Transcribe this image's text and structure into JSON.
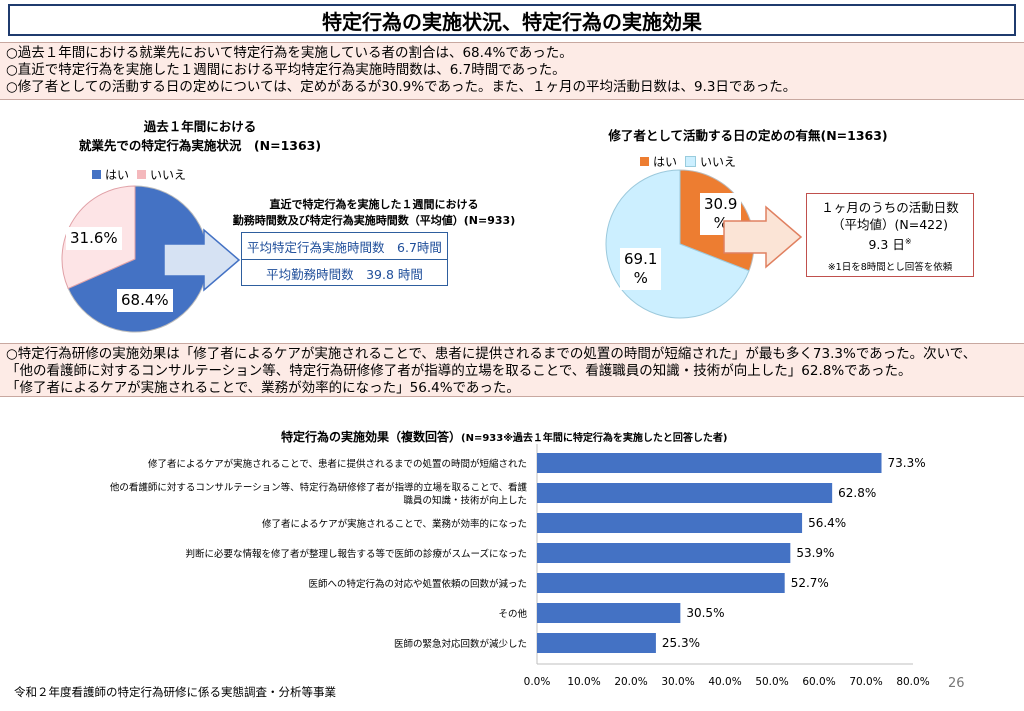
{
  "title": "特定行為の実施状況、特定行為の実施効果",
  "summary_top": [
    "○過去１年間における就業先において特定行為を実施している者の割合は、68.4%であった。",
    "○直近で特定行為を実施した１週間における平均特定行為実施時間数は、6.7時間であった。",
    "○修了者としての活動する日の定めについては、定めがあるが30.9%であった。また、１ヶ月の平均活動日数は、9.3日であった。"
  ],
  "pie1": {
    "title_line1": "過去１年間における",
    "title_line2": "就業先での特定行為実施状況　(N=1363)",
    "legend_yes": "はい",
    "legend_no": "いいえ",
    "label_yes": "68.4%",
    "label_no": "31.6%",
    "color_yes": "#4472c4",
    "color_no": "#f8d7da"
  },
  "hours": {
    "title_line1": "直近で特定行為を実施した１週間における",
    "title_line2": "勤務時間数及び特定行為実施時間数（平均値）(N=933)",
    "row1": "平均特定行為実施時間数　6.7時間",
    "row2": "平均勤務時間数　39.8 時間"
  },
  "pie2": {
    "title": "修了者として活動する日の定めの有無(N=1363)",
    "legend_yes": "はい",
    "legend_no": "いいえ",
    "label_yes_1": "30.9",
    "label_yes_2": "%",
    "label_no_1": "69.1",
    "label_no_2": "%",
    "color_yes": "#ed7d31",
    "color_no": "#ccefff"
  },
  "days": {
    "line1": "１ヶ月のうちの活動日数",
    "line2": "（平均値）(N=422)",
    "line3": "9.3 日",
    "mark": "※",
    "note": "※1日を8時間とし回答を依頼"
  },
  "summary_mid": [
    "○特定行為研修の実施効果は「修了者によるケアが実施されることで、患者に提供されるまでの処置の時間が短縮された」が最も多く73.3%であった。次いで、",
    "「他の看護師に対するコンサルテーション等、特定行為研修修了者が指導的立場を取ることで、看護職員の知識・技術が向上した」62.8%であった。",
    "「修了者によるケアが実施されることで、業務が効率的になった」56.4%であった。"
  ],
  "bar_title": "特定行為の実施効果（複数回答）",
  "bar_subtitle": "(N=933※過去１年間に特定行為を実施したと回答した者)",
  "chart_data": {
    "type": "bar",
    "orientation": "horizontal",
    "title": "特定行為の実施効果（複数回答）",
    "categories": [
      [
        "修了者によるケアが実施されることで、患者に提供されるまでの処置の時間が短縮された"
      ],
      [
        "他の看護師に対するコンサルテーション等、特定行為研修修了者が指導的立場を取ることで、看護",
        "職員の知識・技術が向上した"
      ],
      [
        "修了者によるケアが実施されることで、業務が効率的になった"
      ],
      [
        "判断に必要な情報を修了者が整理し報告する等で医師の診療がスムーズになった"
      ],
      [
        "医師への特定行為の対応や処置依頼の回数が減った"
      ],
      [
        "その他"
      ],
      [
        "医師の緊急対応回数が減少した"
      ]
    ],
    "values": [
      73.3,
      62.8,
      56.4,
      53.9,
      52.7,
      30.5,
      25.3
    ],
    "value_labels": [
      "73.3%",
      "62.8%",
      "56.4%",
      "53.9%",
      "52.7%",
      "30.5%",
      "25.3%"
    ],
    "xlim": [
      0,
      80
    ],
    "ticks": [
      "0.0%",
      "10.0%",
      "20.0%",
      "30.0%",
      "40.0%",
      "50.0%",
      "60.0%",
      "70.0%",
      "80.0%"
    ],
    "bar_color": "#4472c4",
    "grid": false
  },
  "footer": "令和２年度看護師の特定行為研修に係る実態調査・分析等事業",
  "page_number": "26"
}
